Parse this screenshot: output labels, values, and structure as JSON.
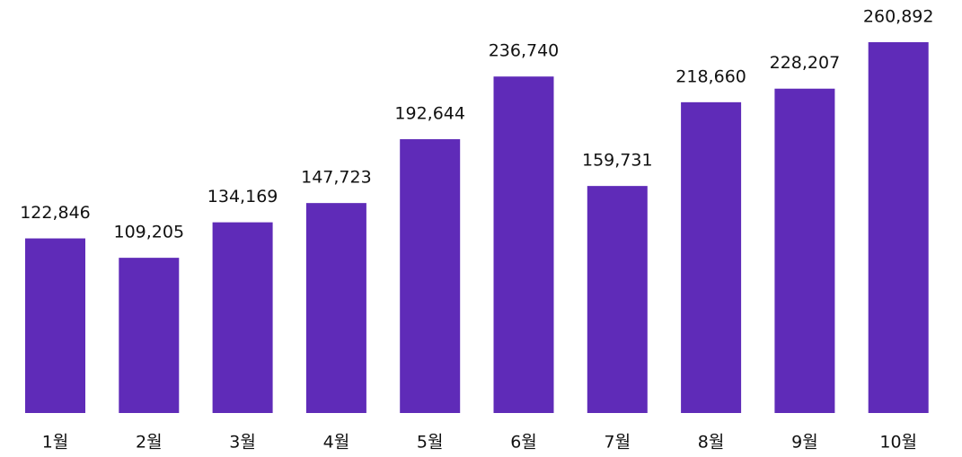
{
  "chart_data": {
    "type": "bar",
    "categories": [
      "1월",
      "2월",
      "3월",
      "4월",
      "5월",
      "6월",
      "7월",
      "8월",
      "9월",
      "10월"
    ],
    "values": [
      122846,
      109205,
      134169,
      147723,
      192644,
      236740,
      159731,
      218660,
      228207,
      260892
    ],
    "value_labels": [
      "122,846",
      "109,205",
      "134,169",
      "147,723",
      "192,644",
      "236,740",
      "159,731",
      "218,660",
      "228,207",
      "260,892"
    ],
    "color": "#5f2bb8"
  }
}
